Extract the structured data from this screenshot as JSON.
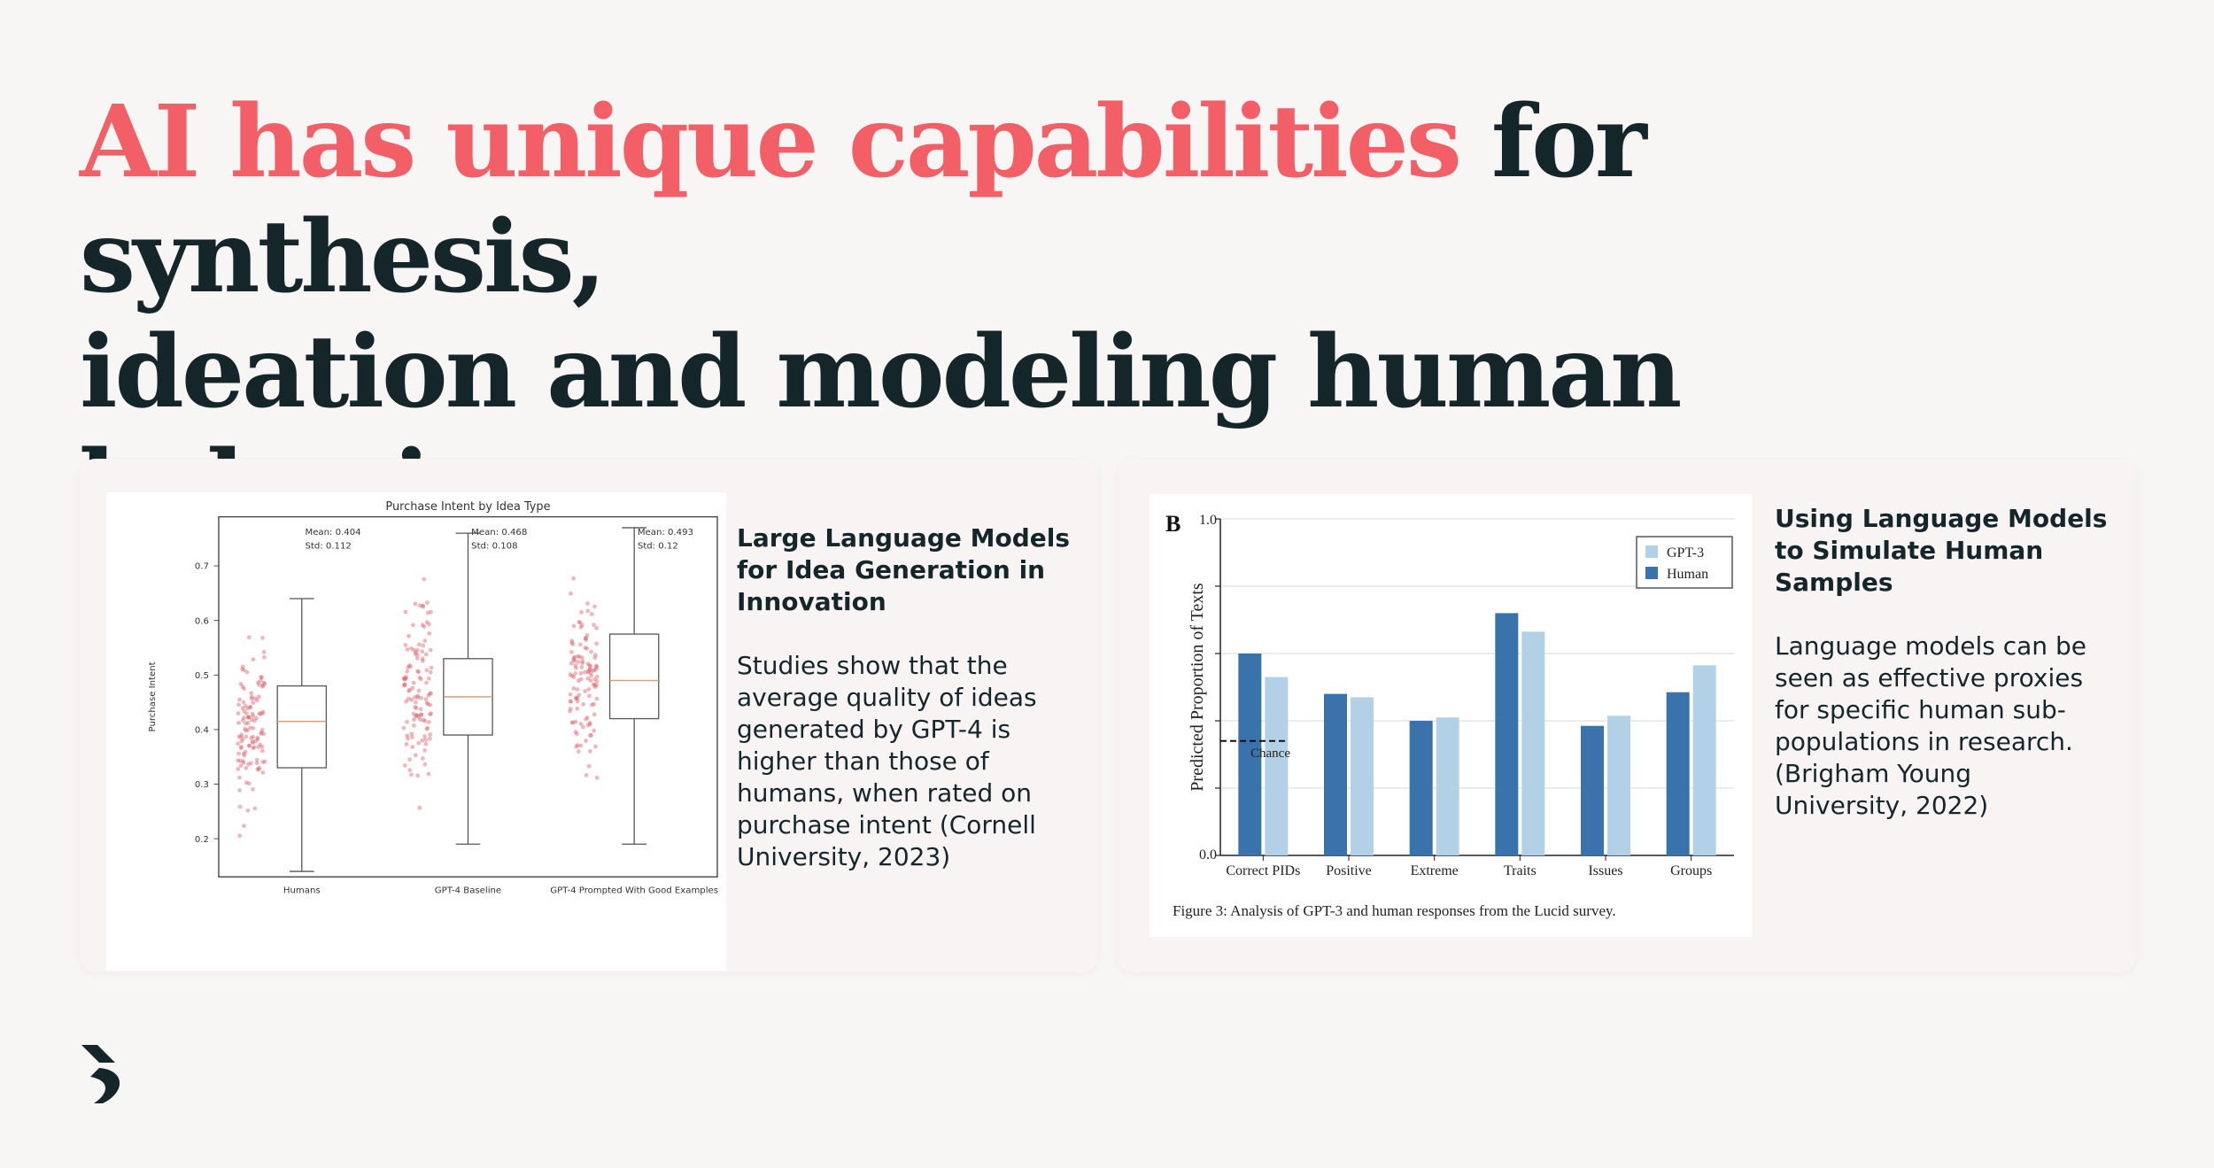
{
  "headline": {
    "accent": "AI has unique capabilities",
    "line1_rest": " for synthesis,",
    "line2": "ideation and modeling human behavior"
  },
  "cards": [
    {
      "title": "Large Language Models for Idea Generation in Innovation",
      "body": "Studies show that the average quality of ideas generated by GPT-4 is higher than those of humans, when rated on purchase intent (Cornell University, 2023)"
    },
    {
      "title": "Using Language Models to Simulate Human Samples",
      "body": "Language models can be seen as effective proxies for specific human sub-populations in research. (Brigham Young University, 2022)"
    }
  ],
  "colors": {
    "accent": "#f25f66",
    "text": "#15262b",
    "background": "#f8f5f5",
    "gpt3": "#b3d1e6",
    "human": "#3a72ab",
    "dots": "#d9616b"
  },
  "chart_data": [
    {
      "type": "box",
      "title": "Purchase Intent by Idea Type",
      "xlabel": "",
      "ylabel": "Purchase Intent",
      "yticks": [
        "0.2",
        "0.3",
        "0.4",
        "0.5",
        "0.6",
        "0.7"
      ],
      "ylim": [
        0.13,
        0.79
      ],
      "categories": [
        "Humans",
        "GPT-4 Baseline",
        "GPT-4 Prompted With Good Examples"
      ],
      "boxes": [
        {
          "name": "Humans",
          "min": 0.14,
          "q1": 0.33,
          "median": 0.415,
          "q3": 0.48,
          "max": 0.64,
          "annotation_mean": "Mean: 0.404",
          "annotation_std": "Std: 0.112"
        },
        {
          "name": "GPT-4 Baseline",
          "min": 0.19,
          "q1": 0.39,
          "median": 0.46,
          "q3": 0.53,
          "max": 0.76,
          "annotation_mean": "Mean: 0.468",
          "annotation_std": "Std: 0.108"
        },
        {
          "name": "GPT-4 Prompted With Good Examples",
          "min": 0.19,
          "q1": 0.42,
          "median": 0.49,
          "q3": 0.575,
          "max": 0.77,
          "annotation_mean": "Mean: 0.493",
          "annotation_std": "Std: 0.12"
        }
      ],
      "grid": false
    },
    {
      "type": "bar",
      "panel_label": "B",
      "title": "",
      "xlabel": "",
      "ylabel": "Predicted Proportion of Texts",
      "yticks": [
        "0.0",
        "1.0"
      ],
      "ylim": [
        0,
        1
      ],
      "categories": [
        "Correct PIDs",
        "Positive",
        "Extreme",
        "Traits",
        "Issues",
        "Groups"
      ],
      "series": [
        {
          "name": "Human",
          "values": [
            0.6,
            0.48,
            0.4,
            0.72,
            0.385,
            0.485
          ]
        },
        {
          "name": "GPT-3",
          "values": [
            0.53,
            0.47,
            0.41,
            0.665,
            0.415,
            0.565
          ]
        }
      ],
      "legend_position": "top-right",
      "reference_line": {
        "label": "Chance",
        "value": 0.34
      },
      "caption": "Figure 3: Analysis of GPT-3 and human responses from the Lucid survey.",
      "grid": true
    }
  ]
}
